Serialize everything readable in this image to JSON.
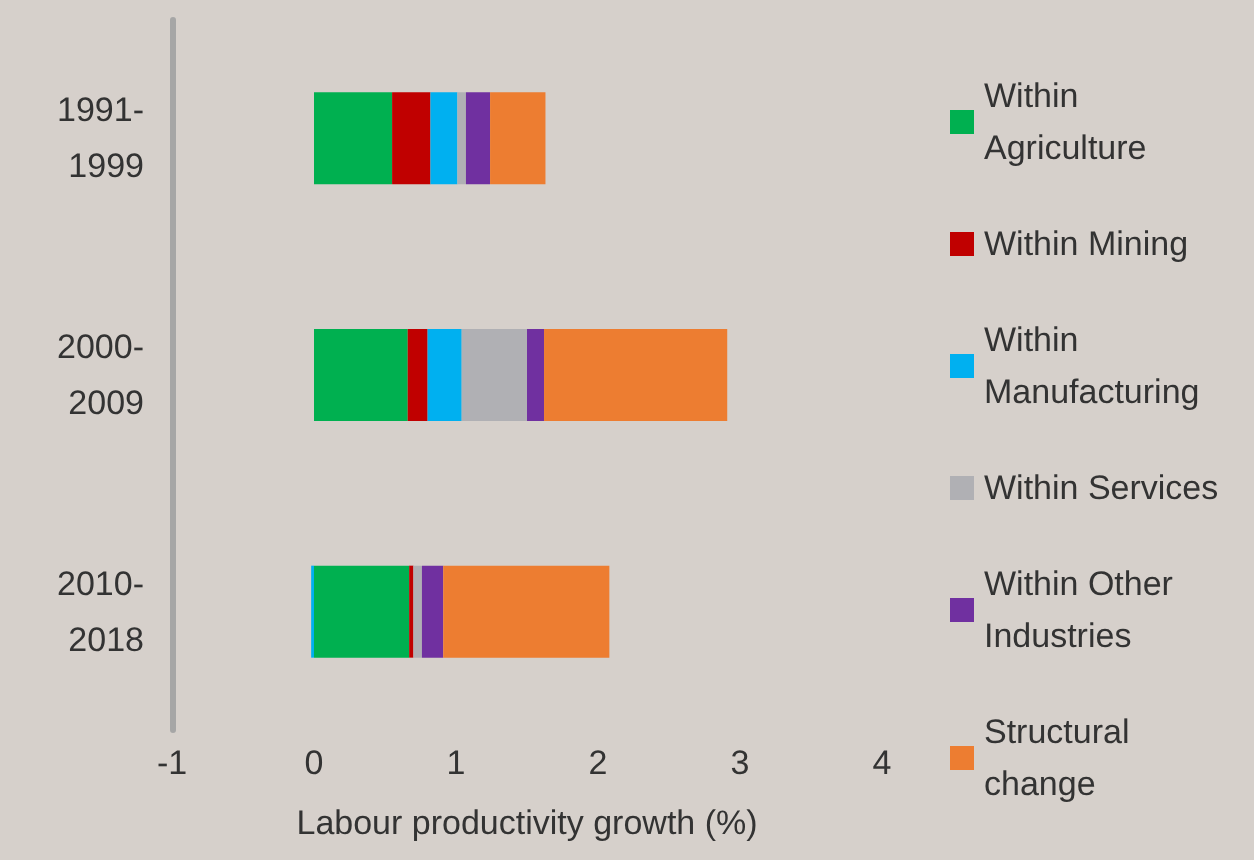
{
  "chart_data": {
    "type": "bar",
    "orientation": "horizontal",
    "stacked": true,
    "categories": [
      "1991-1999",
      "2000-2009",
      "2010-2018"
    ],
    "xlabel": "Labour productivity growth (%)",
    "xlim": [
      -1,
      4
    ],
    "xticks": [
      -1,
      0,
      1,
      2,
      3,
      4
    ],
    "grid": false,
    "legend": "right",
    "series": [
      {
        "name": "Within Agriculture",
        "color": "#00b050",
        "values": [
          0.55,
          0.66,
          0.67
        ]
      },
      {
        "name": "Within Mining",
        "color": "#c00000",
        "values": [
          0.27,
          0.14,
          0.03
        ]
      },
      {
        "name": "Within Manufacturing",
        "color": "#00b0f0",
        "values": [
          0.19,
          0.24,
          -0.02
        ]
      },
      {
        "name": "Within Services",
        "color": "#b0b0b4",
        "values": [
          0.06,
          0.46,
          0.06
        ]
      },
      {
        "name": "Within Other Industries",
        "color": "#7030a0",
        "values": [
          0.17,
          0.12,
          0.15
        ]
      },
      {
        "name": "Structural change",
        "color": "#ed7d31",
        "values": [
          0.39,
          1.29,
          1.17
        ]
      }
    ]
  }
}
